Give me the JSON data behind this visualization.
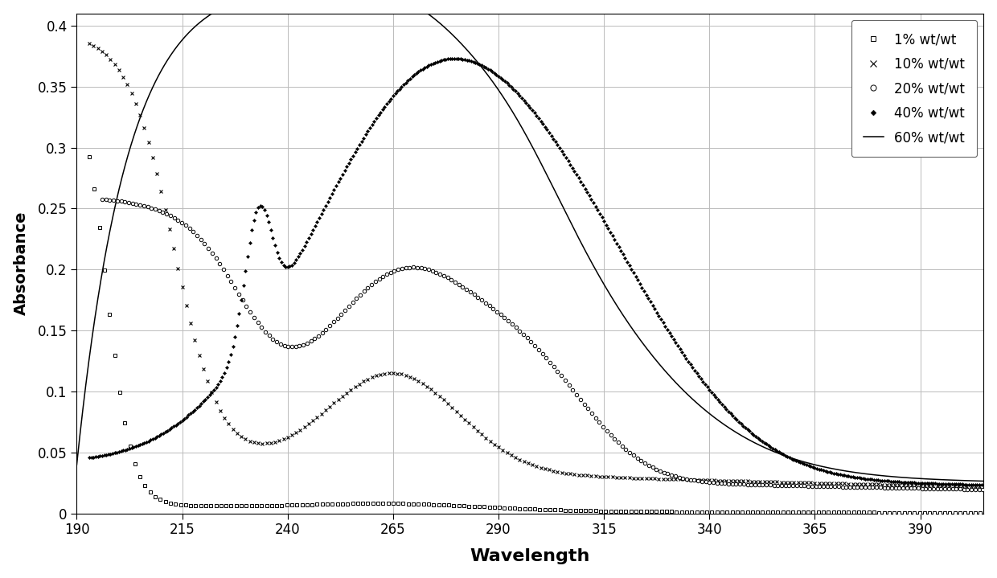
{
  "title": "",
  "xlabel": "Wavelength",
  "ylabel": "Absorbance",
  "xlim": [
    190,
    405
  ],
  "ylim": [
    0,
    0.41
  ],
  "xticks": [
    190,
    215,
    240,
    265,
    290,
    315,
    340,
    365,
    390
  ],
  "yticks": [
    0,
    0.05,
    0.1,
    0.15,
    0.2,
    0.25,
    0.3,
    0.35,
    0.4
  ],
  "ytick_labels": [
    "0",
    "0.05",
    "0.1",
    "0.15",
    "0.2",
    "0.25",
    "0.3",
    "0.35",
    "0.4"
  ],
  "legend_entries": [
    "1% wt/wt",
    "10% wt/wt",
    "20% wt/wt",
    "40% wt/wt",
    "60% wt/wt"
  ],
  "background_color": "#ffffff",
  "grid_color": "#bbbbbb"
}
